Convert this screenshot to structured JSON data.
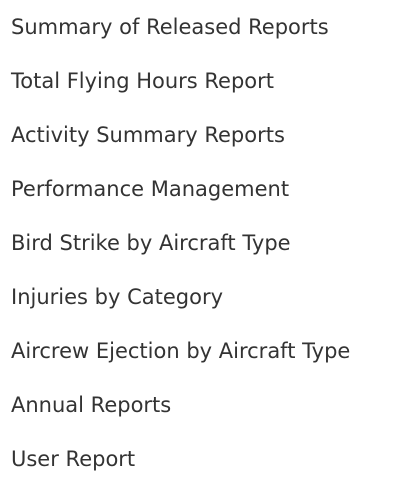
{
  "report_menu": {
    "items": [
      {
        "label": "Summary of Released Reports"
      },
      {
        "label": "Total Flying Hours Report"
      },
      {
        "label": "Activity Summary Reports"
      },
      {
        "label": "Performance Management"
      },
      {
        "label": "Bird Strike by Aircraft Type"
      },
      {
        "label": "Injuries by Category"
      },
      {
        "label": "Aircrew Ejection by Aircraft Type"
      },
      {
        "label": "Annual Reports"
      },
      {
        "label": "User Report"
      }
    ],
    "text_color": "#333333",
    "background_color": "#ffffff"
  }
}
